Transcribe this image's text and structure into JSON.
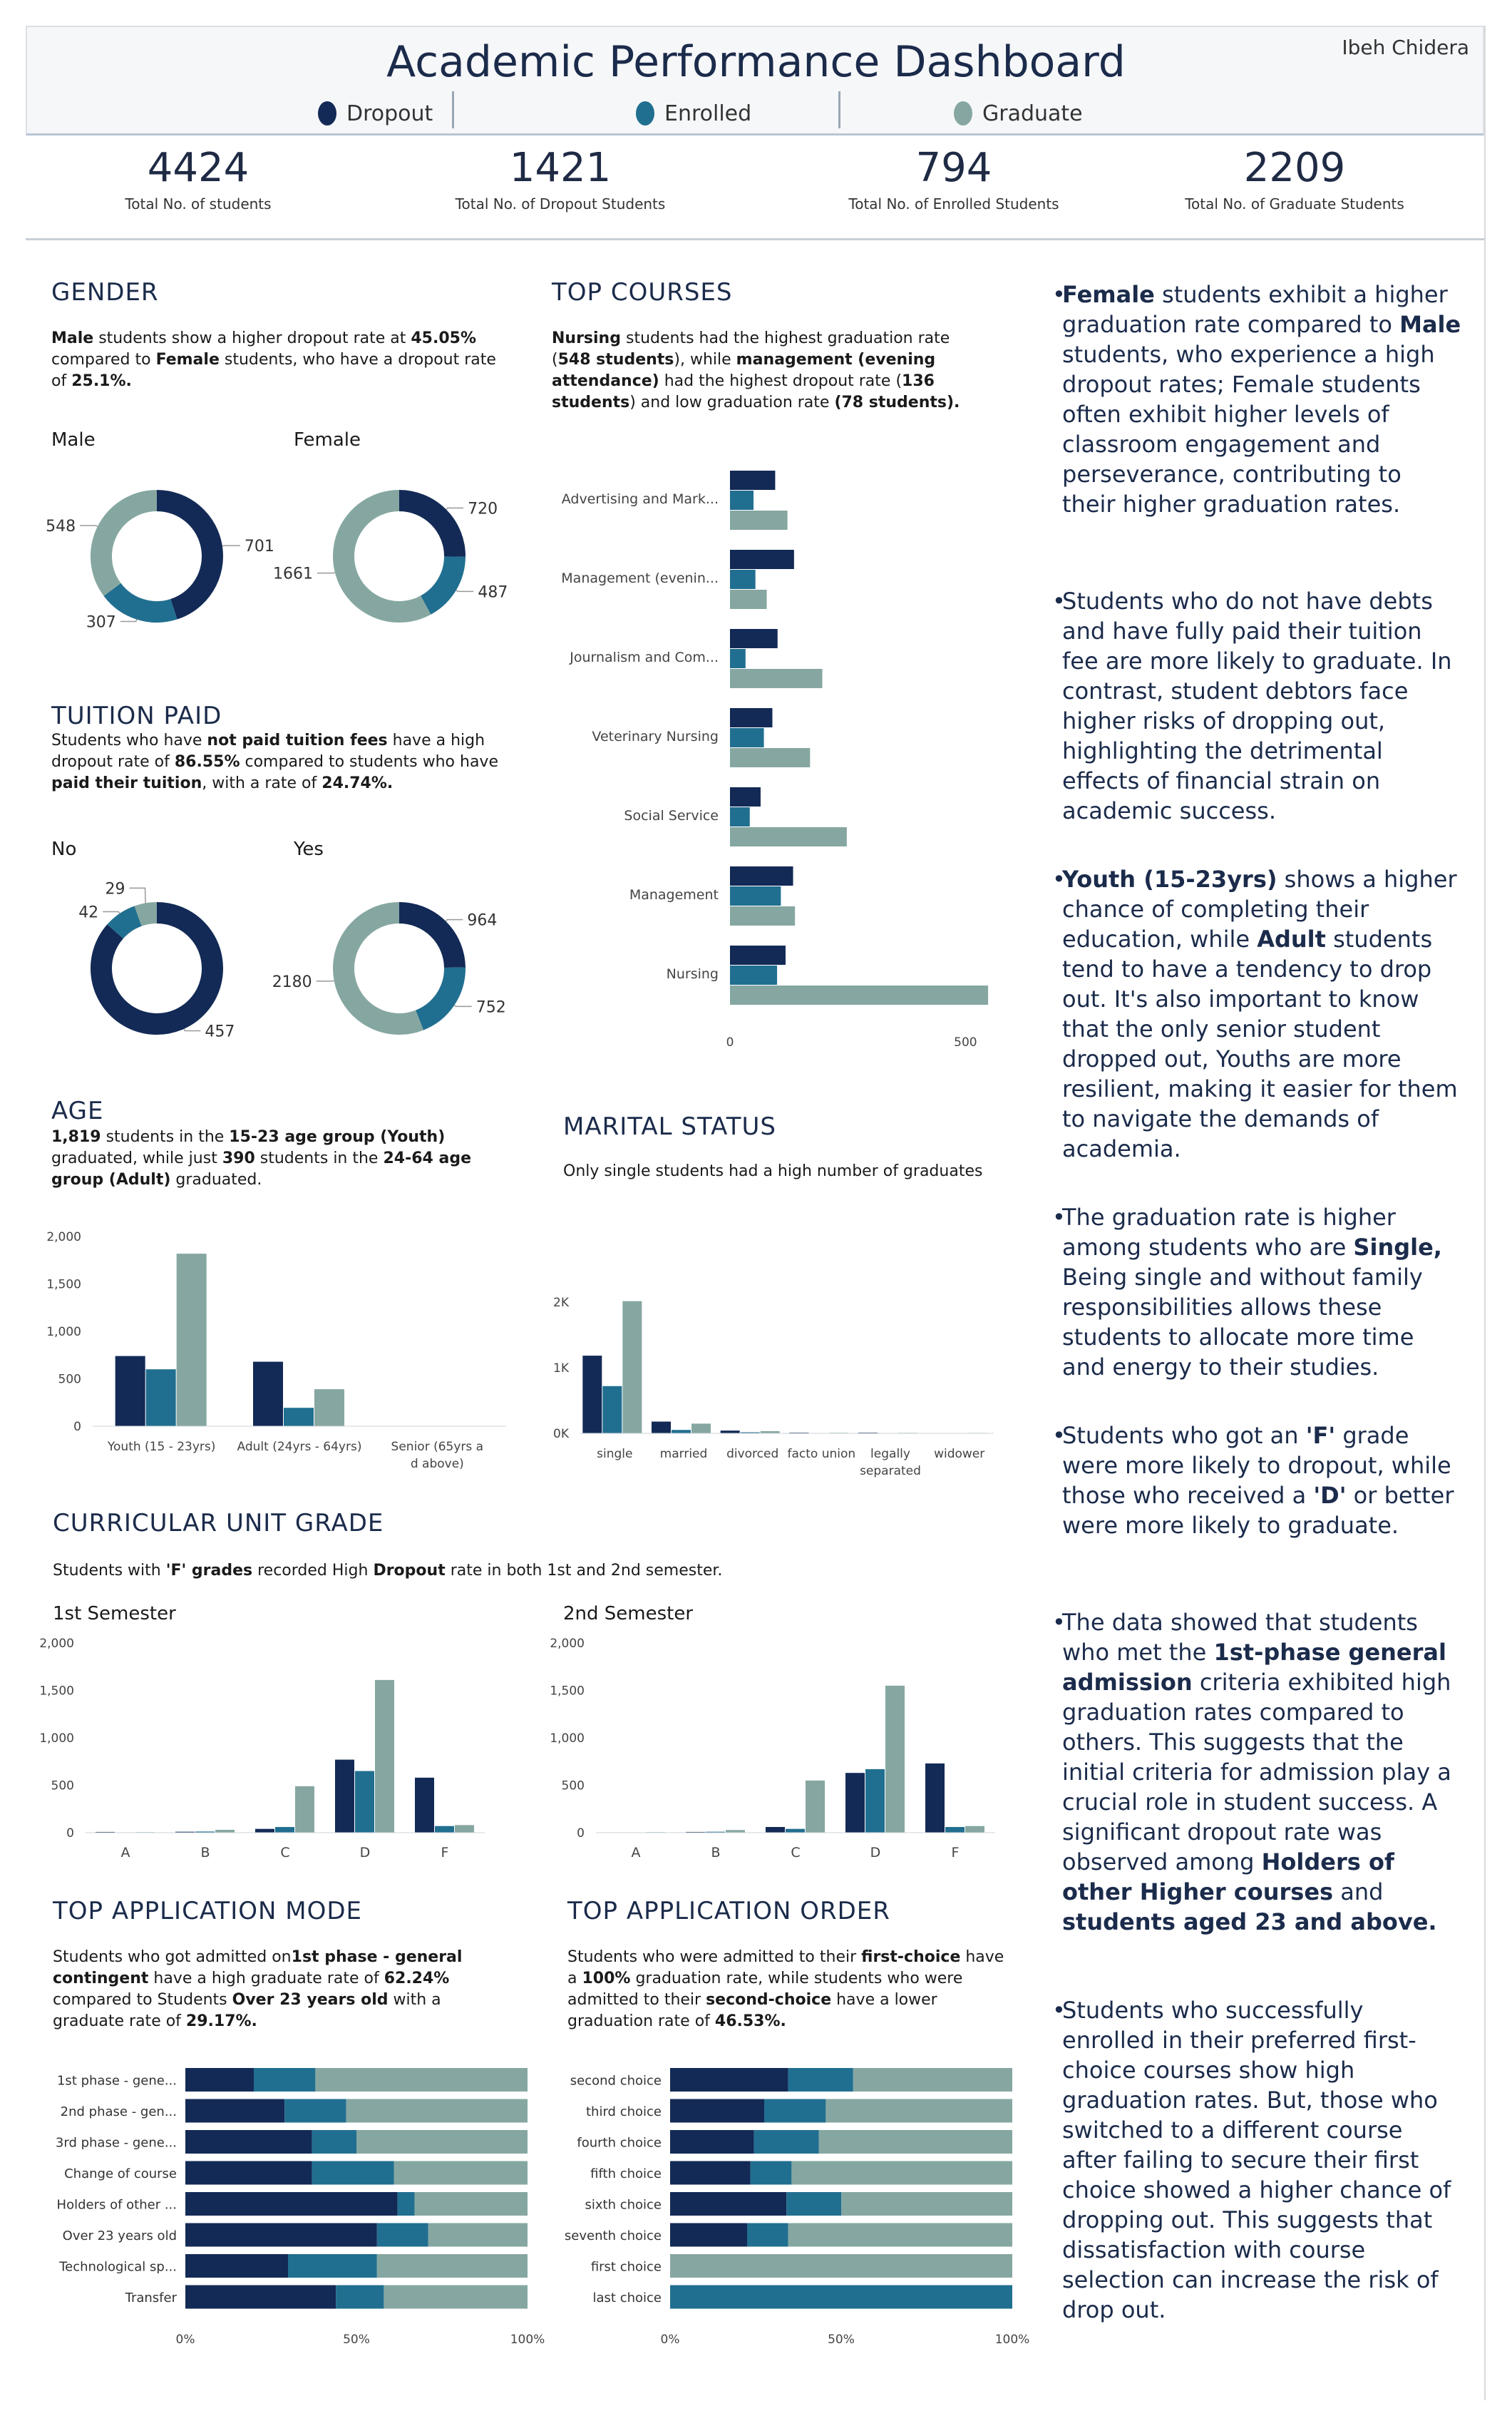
{
  "header": {
    "title": "Academic Performance Dashboard",
    "author": "Ibeh Chidera",
    "legend": [
      "Dropout",
      "Enrolled",
      "Graduate"
    ]
  },
  "colors": {
    "dropout": "#132a56",
    "enrolled": "#216f90",
    "graduate": "#86a7a1"
  },
  "kpis": [
    {
      "value": "4424",
      "label": "Total No. of students"
    },
    {
      "value": "1421",
      "label": "Total No. of Dropout Students"
    },
    {
      "value": "794",
      "label": "Total No. of Enrolled Students"
    },
    {
      "value": "2209",
      "label": "Total No. of Graduate Students"
    }
  ],
  "gender": {
    "title": "GENDER",
    "desc_parts": [
      "Male",
      " students show a higher dropout rate at ",
      "45.05%",
      " compared to ",
      "Female",
      " students, who have a dropout rate of ",
      "25.1%."
    ],
    "male_label": "Male",
    "female_label": "Female"
  },
  "tuition": {
    "title": "TUITION PAID",
    "desc_parts": [
      "Students who have ",
      "not paid tuition fees",
      " have a high dropout rate of ",
      "86.55%",
      " compared to students who have ",
      "paid their tuition",
      ", with a rate of ",
      "24.74%."
    ],
    "no_label": "No",
    "yes_label": "Yes"
  },
  "courses": {
    "title": "TOP COURSES",
    "desc_parts": [
      "Nursing",
      " students had the highest graduation rate (",
      "548 students",
      "), while ",
      "management (evening attendance)",
      " had the highest dropout rate (",
      "136 students",
      ") and low graduation rate ",
      "(78 students)."
    ]
  },
  "age": {
    "title": "AGE",
    "desc_parts": [
      "1,819",
      " students in the ",
      "15-23 age group (Youth)",
      " graduated, while just ",
      "390",
      " students in the ",
      "24-64 age group (Adult)",
      " graduated."
    ]
  },
  "marital": {
    "title": "MARITAL STATUS",
    "desc": "Only single students had a high number of graduates"
  },
  "curricular": {
    "title": "CURRICULAR UNIT GRADE",
    "desc_parts": [
      "Students with ",
      "'F' grades",
      " recorded High ",
      "Dropout",
      " rate in both 1st and 2nd semester."
    ],
    "sem1_label": "1st Semester",
    "sem2_label": "2nd Semester"
  },
  "app_mode": {
    "title": "TOP APPLICATION MODE",
    "desc_parts": [
      "Students who got admitted on",
      "1st phase - general contingent",
      " have a high graduate rate of ",
      "62.24%",
      " compared to Students ",
      "Over 23 years old",
      " with a graduate rate of ",
      "29.17%."
    ]
  },
  "app_order": {
    "title": "TOP APPLICATION ORDER",
    "desc_parts": [
      "Students who were admitted to their ",
      "first-choice",
      " have a ",
      "100%",
      " graduation rate, while students who were admitted to their ",
      "second-choice",
      " have a lower graduation rate of ",
      "46.53%."
    ]
  },
  "insights": [
    [
      [
        "b",
        "Female"
      ],
      [
        "n",
        " students exhibit a higher graduation rate compared to "
      ],
      [
        "b",
        "Male"
      ],
      [
        "n",
        " students, who experience a high dropout rates; Female students often exhibit higher levels of classroom engagement and perseverance, contributing to their higher graduation rates."
      ]
    ],
    [
      [
        "n",
        "Students who do not have debts and have fully paid their tuition fee are more likely to graduate. In contrast, student debtors face higher risks of dropping out, highlighting the detrimental effects of financial strain on academic success."
      ]
    ],
    [
      [
        "b",
        "Youth (15-23yrs)"
      ],
      [
        "n",
        " shows a higher chance of completing their education, while "
      ],
      [
        "b",
        "Adult"
      ],
      [
        "n",
        " students tend to have a tendency to drop out. It's also important to know that the only senior student dropped out, Youths are more resilient, making it easier for them to navigate the demands of academia."
      ]
    ],
    [
      [
        "n",
        "The graduation rate is higher among students who are "
      ],
      [
        "b",
        "Single,"
      ],
      [
        "n",
        " Being single and without family responsibilities allows these students to allocate more time and energy to their studies."
      ]
    ],
    [
      [
        "n",
        "Students who got an "
      ],
      [
        "b",
        "'F'"
      ],
      [
        "n",
        " grade were more likely to dropout, while those who received a "
      ],
      [
        "b",
        "'D'"
      ],
      [
        "n",
        " or better were more likely to graduate."
      ]
    ],
    [
      [
        "n",
        "The data showed that students who met the "
      ],
      [
        "b",
        "1st-phase general admission"
      ],
      [
        "n",
        " criteria exhibited high graduation rates compared to others. This suggests that the initial criteria for admission play a crucial role in student success. A significant dropout rate was observed among "
      ],
      [
        "b",
        "Holders of other Higher courses"
      ],
      [
        "n",
        " and "
      ],
      [
        "b",
        "students aged 23 and above."
      ]
    ],
    [
      [
        "n",
        "Students who successfully enrolled in their preferred first-choice courses show high graduation rates. But, those who switched to a different course after failing to secure their first choice showed a higher chance of dropping out. This suggests that dissatisfaction with course selection can increase the risk of drop out."
      ]
    ]
  ],
  "chart_data": [
    {
      "id": "gender_male",
      "type": "pie",
      "title": "Male",
      "labels": [
        "Dropout",
        "Enrolled",
        "Graduate"
      ],
      "values": [
        701,
        307,
        548
      ]
    },
    {
      "id": "gender_female",
      "type": "pie",
      "title": "Female",
      "labels": [
        "Dropout",
        "Enrolled",
        "Graduate"
      ],
      "values": [
        720,
        487,
        1661
      ]
    },
    {
      "id": "tuition_no",
      "type": "pie",
      "title": "No",
      "labels": [
        "Dropout",
        "Enrolled",
        "Graduate"
      ],
      "values": [
        457,
        42,
        29
      ]
    },
    {
      "id": "tuition_yes",
      "type": "pie",
      "title": "Yes",
      "labels": [
        "Dropout",
        "Enrolled",
        "Graduate"
      ],
      "values": [
        964,
        752,
        2180
      ]
    },
    {
      "id": "courses",
      "type": "bar",
      "orientation": "horizontal",
      "categories": [
        "Advertising and Mark...",
        "Management (evenin...",
        "Journalism and Com...",
        "Veterinary Nursing",
        "Social Service",
        "Management",
        "Nursing"
      ],
      "series": [
        {
          "name": "Dropout",
          "values": [
            96,
            136,
            101,
            90,
            65,
            134,
            118
          ]
        },
        {
          "name": "Enrolled",
          "values": [
            50,
            54,
            33,
            72,
            42,
            108,
            100
          ]
        },
        {
          "name": "Graduate",
          "values": [
            122,
            78,
            196,
            170,
            248,
            138,
            548
          ]
        }
      ],
      "xticks": [
        "0",
        "500"
      ],
      "xlim": [
        0,
        560
      ]
    },
    {
      "id": "age",
      "type": "bar",
      "categories": [
        "Youth (15 - 23yrs)",
        "Adult (24yrs - 64yrs)",
        "Senior (65yrs and above)"
      ],
      "series": [
        {
          "name": "Dropout",
          "values": [
            740,
            680,
            1
          ]
        },
        {
          "name": "Enrolled",
          "values": [
            600,
            194,
            0
          ]
        },
        {
          "name": "Graduate",
          "values": [
            1819,
            390,
            0
          ]
        }
      ],
      "yticks": [
        "0",
        "500",
        "1,000",
        "1,500",
        "2,000"
      ],
      "ylim": [
        0,
        2000
      ]
    },
    {
      "id": "marital",
      "type": "bar",
      "categories": [
        "single",
        "married",
        "divorced",
        "facto union",
        "legally separated",
        "widower"
      ],
      "series": [
        {
          "name": "Dropout",
          "values": [
            1184,
            179,
            42,
            11,
            11,
            4
          ]
        },
        {
          "name": "Enrolled",
          "values": [
            720,
            52,
            16,
            5,
            3,
            3
          ]
        },
        {
          "name": "Graduate",
          "values": [
            2015,
            148,
            33,
            9,
            8,
            7
          ]
        }
      ],
      "yticks": [
        "0K",
        "1K",
        "2K"
      ],
      "ylim": [
        0,
        2500
      ]
    },
    {
      "id": "sem1",
      "type": "bar",
      "title": "1st Semester",
      "categories": [
        "A",
        "B",
        "C",
        "D",
        "F"
      ],
      "series": [
        {
          "name": "Dropout",
          "values": [
            8,
            10,
            40,
            770,
            580
          ]
        },
        {
          "name": "Enrolled",
          "values": [
            2,
            12,
            60,
            650,
            70
          ]
        },
        {
          "name": "Graduate",
          "values": [
            6,
            30,
            490,
            1610,
            80
          ]
        }
      ],
      "yticks": [
        "0",
        "500",
        "1,000",
        "1,500",
        "2,000"
      ],
      "ylim": [
        0,
        2000
      ]
    },
    {
      "id": "sem2",
      "type": "bar",
      "title": "2nd Semester",
      "categories": [
        "A",
        "B",
        "C",
        "D",
        "F"
      ],
      "series": [
        {
          "name": "Dropout",
          "values": [
            3,
            8,
            60,
            630,
            730
          ]
        },
        {
          "name": "Enrolled",
          "values": [
            2,
            10,
            40,
            670,
            60
          ]
        },
        {
          "name": "Graduate",
          "values": [
            6,
            28,
            550,
            1550,
            70
          ]
        }
      ],
      "yticks": [
        "0",
        "500",
        "1,000",
        "1,500",
        "2,000"
      ],
      "ylim": [
        0,
        2000
      ]
    },
    {
      "id": "app_mode",
      "type": "bar",
      "stacked": "percent",
      "orientation": "horizontal",
      "categories": [
        "1st phase - gene...",
        "2nd phase - gen...",
        "3rd phase - gene...",
        "Change of course",
        "Holders of other ...",
        "Over 23 years old",
        "Technological sp...",
        "Transfer"
      ],
      "series": [
        {
          "name": "Dropout",
          "values": [
            20,
            29,
            37,
            37,
            62,
            56,
            30,
            44
          ]
        },
        {
          "name": "Enrolled",
          "values": [
            18,
            18,
            13,
            24,
            5,
            15,
            26,
            14
          ]
        },
        {
          "name": "Graduate",
          "values": [
            62,
            53,
            50,
            39,
            33,
            29,
            44,
            42
          ]
        }
      ],
      "xticks": [
        "0%",
        "50%",
        "100%"
      ]
    },
    {
      "id": "app_order",
      "type": "bar",
      "stacked": "percent",
      "orientation": "horizontal",
      "categories": [
        "second choice",
        "third choice",
        "fourth choice",
        "fifth choice",
        "sixth choice",
        "seventh choice",
        "first choice",
        "last choice"
      ],
      "series": [
        {
          "name": "Dropout",
          "values": [
            34.5,
            27.5,
            24.5,
            23.5,
            34,
            22.5,
            0,
            0
          ]
        },
        {
          "name": "Enrolled",
          "values": [
            19,
            18,
            19,
            12,
            16,
            12,
            0,
            100
          ]
        },
        {
          "name": "Graduate",
          "values": [
            46.5,
            54.5,
            56.5,
            64.5,
            50,
            65.5,
            100,
            0
          ]
        }
      ],
      "xticks": [
        "0%",
        "50%",
        "100%"
      ]
    }
  ]
}
